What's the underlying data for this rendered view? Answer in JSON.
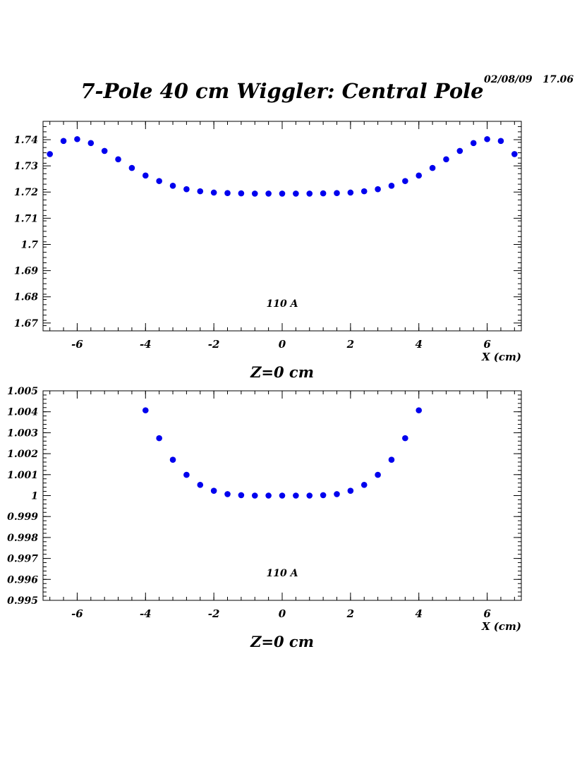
{
  "header": {
    "timestamp": "02/08/09   17.06",
    "title": "7-Pole 40 cm Wiggler: Central Pole"
  },
  "style": {
    "marker_color": "#0000ee",
    "axis_color": "#000000"
  },
  "chart_data": [
    {
      "type": "scatter",
      "title": "",
      "xlabel": "X (cm)",
      "ylabel": "",
      "caption": "Z=0 cm",
      "annotation": "110 A",
      "xlim": [
        -7,
        7
      ],
      "ylim": [
        1.667,
        1.747
      ],
      "xticks": [
        -6,
        -4,
        -2,
        0,
        2,
        4,
        6
      ],
      "yticks": [
        1.67,
        1.68,
        1.69,
        1.7,
        1.71,
        1.72,
        1.73,
        1.74
      ],
      "ytick_labels": [
        "1.67",
        "1.68",
        "1.69",
        "1.7",
        "1.71",
        "1.72",
        "1.73",
        "1.74"
      ],
      "grid": false,
      "series": [
        {
          "x": [
            -6.8,
            -6.4,
            -6.0,
            -5.6,
            -5.2,
            -4.8,
            -4.4,
            -4.0,
            -3.6,
            -3.2,
            -2.8,
            -2.4,
            -2.0,
            -1.6,
            -1.2,
            -0.8,
            -0.4,
            0.0,
            0.4,
            0.8,
            1.2,
            1.6,
            2.0,
            2.4,
            2.8,
            3.2,
            3.6,
            4.0,
            4.4,
            4.8,
            5.2,
            5.6,
            6.0,
            6.4,
            6.8
          ],
          "y": [
            1.7345,
            1.7395,
            1.7402,
            1.7387,
            1.7357,
            1.7325,
            1.7292,
            1.7263,
            1.7242,
            1.7224,
            1.7211,
            1.7203,
            1.7198,
            1.7196,
            1.7195,
            1.7194,
            1.7194,
            1.7194,
            1.7194,
            1.7194,
            1.7195,
            1.7196,
            1.7198,
            1.7203,
            1.7211,
            1.7224,
            1.7242,
            1.7263,
            1.7292,
            1.7325,
            1.7357,
            1.7387,
            1.7402,
            1.7395,
            1.7345
          ]
        }
      ]
    },
    {
      "type": "scatter",
      "title": "",
      "xlabel": "X (cm)",
      "ylabel": "",
      "caption": "Z=0 cm",
      "annotation": "110 A",
      "xlim": [
        -7,
        7
      ],
      "ylim": [
        0.995,
        1.005
      ],
      "xticks": [
        -6,
        -4,
        -2,
        0,
        2,
        4,
        6
      ],
      "yticks": [
        0.995,
        0.996,
        0.997,
        0.998,
        0.999,
        1.0,
        1.001,
        1.002,
        1.003,
        1.004,
        1.005
      ],
      "ytick_labels": [
        "0.995",
        "0.996",
        "0.997",
        "0.998",
        "0.999",
        "1",
        "1.001",
        "1.002",
        "1.003",
        "1.004",
        "1.005"
      ],
      "grid": false,
      "series": [
        {
          "x": [
            -4.0,
            -3.6,
            -3.2,
            -2.8,
            -2.4,
            -2.0,
            -1.6,
            -1.2,
            -0.8,
            -0.4,
            0.0,
            0.4,
            0.8,
            1.2,
            1.6,
            2.0,
            2.4,
            2.8,
            3.2,
            3.6,
            4.0
          ],
          "y": [
            1.00407,
            1.00274,
            1.00171,
            1.00099,
            1.00051,
            1.00023,
            1.00007,
            1.00002,
            1.0,
            1.0,
            1.0,
            1.0,
            1.0,
            1.00002,
            1.00007,
            1.00023,
            1.00051,
            1.00099,
            1.00171,
            1.00274,
            1.00407
          ]
        }
      ]
    }
  ]
}
